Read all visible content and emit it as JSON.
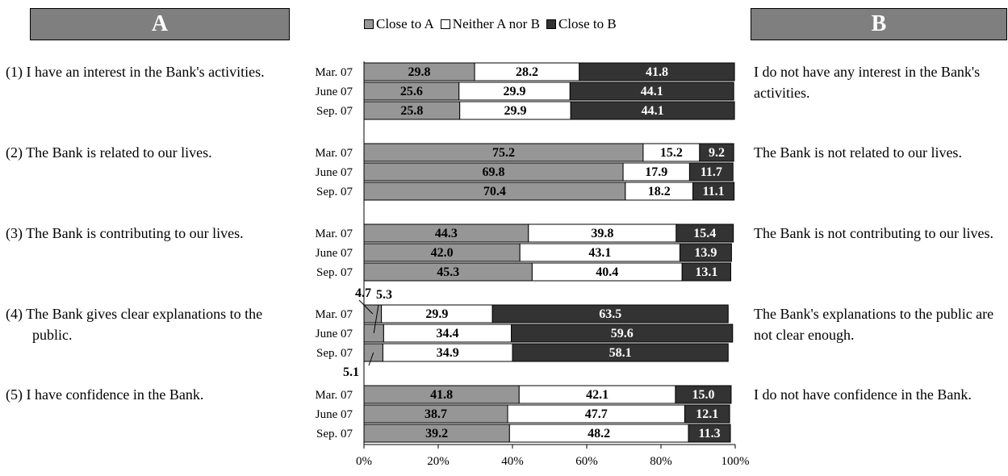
{
  "header": {
    "a_label": "A",
    "b_label": "B"
  },
  "legend": {
    "items": [
      {
        "label": "Close to A",
        "color": "#969696"
      },
      {
        "label": "Neither A nor B",
        "color": "#ffffff"
      },
      {
        "label": "Close to B",
        "color": "#333333"
      }
    ]
  },
  "statements_a": [
    "(1) I have an interest in the Bank's activities.",
    "(2) The Bank is related to our lives.",
    "(3) The Bank is contributing to our lives.",
    "(4) The Bank gives clear explanations to the public.",
    "(5) I have confidence in the Bank."
  ],
  "statements_b": [
    "I do not have any interest in the Bank's activities.",
    "The Bank is not related to our lives.",
    "The Bank is not contributing to our lives.",
    "The Bank's explanations to the public are not clear enough.",
    "I do not have confidence in the Bank."
  ],
  "chart_data": {
    "type": "bar",
    "orientation": "horizontal",
    "stacked": true,
    "percent_stacked": true,
    "xlim": [
      0,
      100
    ],
    "x_ticks": [
      "0%",
      "20%",
      "40%",
      "60%",
      "80%",
      "100%"
    ],
    "series_names": [
      "Close to A",
      "Neither A nor B",
      "Close to B"
    ],
    "colors": [
      "#969696",
      "#ffffff",
      "#333333"
    ],
    "groups": [
      {
        "rows": [
          {
            "label": "Mar. 07",
            "values": [
              29.8,
              28.2,
              41.8
            ]
          },
          {
            "label": "June 07",
            "values": [
              25.6,
              29.9,
              44.1
            ]
          },
          {
            "label": "Sep. 07",
            "values": [
              25.8,
              29.9,
              44.1
            ]
          }
        ]
      },
      {
        "rows": [
          {
            "label": "Mar. 07",
            "values": [
              75.2,
              15.2,
              9.2
            ]
          },
          {
            "label": "June 07",
            "values": [
              69.8,
              17.9,
              11.7
            ]
          },
          {
            "label": "Sep. 07",
            "values": [
              70.4,
              18.2,
              11.1
            ]
          }
        ]
      },
      {
        "rows": [
          {
            "label": "Mar. 07",
            "values": [
              44.3,
              39.8,
              15.4
            ]
          },
          {
            "label": "June 07",
            "values": [
              42.0,
              43.1,
              13.9
            ]
          },
          {
            "label": "Sep. 07",
            "values": [
              45.3,
              40.4,
              13.1
            ]
          }
        ]
      },
      {
        "rows": [
          {
            "label": "Mar. 07",
            "values": [
              4.7,
              29.9,
              63.5
            ]
          },
          {
            "label": "June 07",
            "values": [
              5.3,
              34.4,
              59.6
            ]
          },
          {
            "label": "Sep. 07",
            "values": [
              5.1,
              34.9,
              58.1
            ]
          }
        ]
      },
      {
        "rows": [
          {
            "label": "Mar. 07",
            "values": [
              41.8,
              42.1,
              15.0
            ]
          },
          {
            "label": "June 07",
            "values": [
              38.7,
              47.7,
              12.1
            ]
          },
          {
            "label": "Sep. 07",
            "values": [
              39.2,
              48.2,
              11.3
            ]
          }
        ]
      }
    ]
  }
}
